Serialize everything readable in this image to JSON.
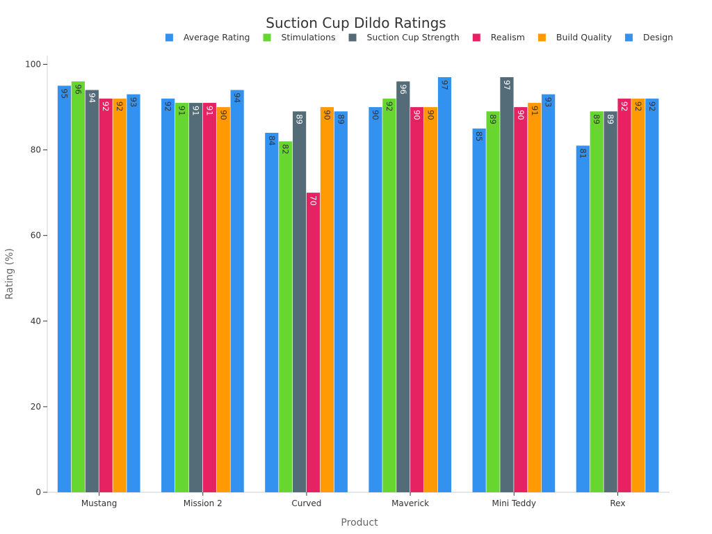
{
  "chart_data": {
    "type": "bar",
    "title": "Suction Cup Dildo Ratings",
    "xlabel": "Product",
    "ylabel": "Rating (%)",
    "ylim": [
      0,
      100
    ],
    "yticks": [
      0,
      20,
      40,
      60,
      80,
      100
    ],
    "grid": false,
    "legend_position": "top",
    "categories": [
      "Mustang",
      "Mission 2",
      "Curved",
      "Maverick",
      "Mini Teddy",
      "Rex"
    ],
    "series": [
      {
        "name": "Average Rating",
        "color": "#3392f0",
        "label_color": "#333333",
        "values": [
          95,
          92,
          84,
          90,
          85,
          81
        ]
      },
      {
        "name": "Stimulations",
        "color": "#67d630",
        "label_color": "#333333",
        "values": [
          96,
          91,
          82,
          92,
          89,
          89
        ]
      },
      {
        "name": "Suction Cup Strength",
        "color": "#546c78",
        "label_color": "#ffffff",
        "values": [
          94,
          91,
          89,
          96,
          97,
          89
        ]
      },
      {
        "name": "Realism",
        "color": "#e62263",
        "label_color": "#ffffff",
        "values": [
          92,
          91,
          70,
          90,
          90,
          92
        ]
      },
      {
        "name": "Build Quality",
        "color": "#ff9a05",
        "label_color": "#333333",
        "values": [
          92,
          90,
          90,
          90,
          91,
          92
        ]
      },
      {
        "name": "Design",
        "color": "#3392f0",
        "label_color": "#333333",
        "values": [
          93,
          94,
          89,
          97,
          93,
          92
        ]
      }
    ]
  }
}
